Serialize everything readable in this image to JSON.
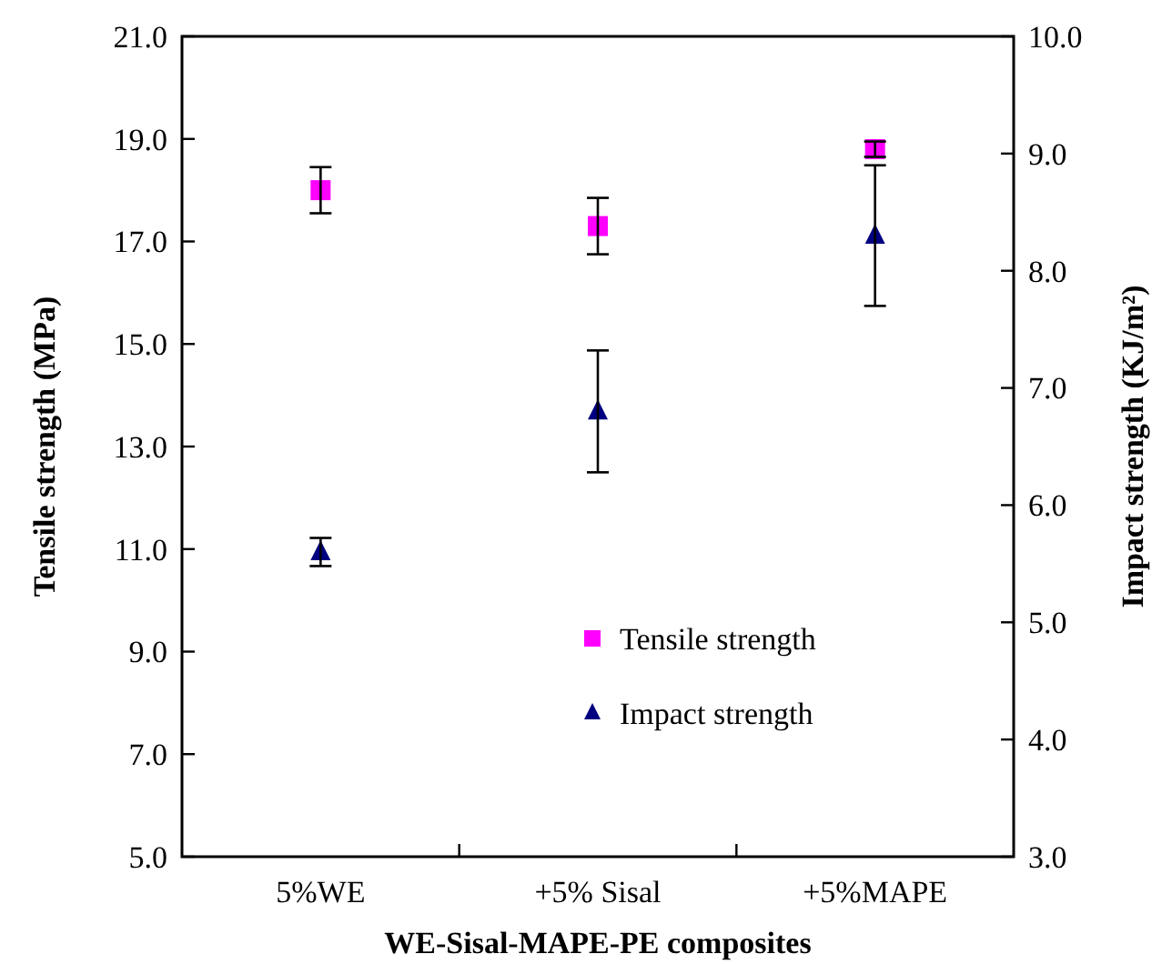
{
  "chart_data": {
    "type": "scatter",
    "xlabel": "WE-Sisal-MAPE-PE composites",
    "ylabel": "Tensile strength (MPa)",
    "y2label": "Impact strength (KJ/m²)",
    "categories": [
      "5%WE",
      "+5% Sisal",
      "+5%MAPE"
    ],
    "series": [
      {
        "name": "Tensile strength",
        "color": "#ff00ff",
        "marker": "square",
        "values": [
          18.0,
          17.3,
          18.8
        ],
        "errors": [
          0.45,
          0.55,
          0.15
        ]
      },
      {
        "name": "Impact strength",
        "color": "#000080",
        "marker": "triangle",
        "axis": "y2",
        "values": [
          5.6,
          6.8,
          8.3
        ],
        "errors": [
          0.12,
          0.52,
          0.6
        ]
      }
    ],
    "ylim": [
      5,
      21
    ],
    "yticks": [
      {
        "value": 5,
        "label": "5.0"
      },
      {
        "value": 7,
        "label": "7.0"
      },
      {
        "value": 9,
        "label": "9.0"
      },
      {
        "value": 11,
        "label": "11.0"
      },
      {
        "value": 13,
        "label": "13.0"
      },
      {
        "value": 15,
        "label": "15.0"
      },
      {
        "value": 17,
        "label": "17.0"
      },
      {
        "value": 19,
        "label": "19.0"
      },
      {
        "value": 21,
        "label": "21.0"
      }
    ],
    "y2lim": [
      3,
      10
    ],
    "y2ticks": [
      {
        "value": 3,
        "label": "3.0"
      },
      {
        "value": 4,
        "label": "4.0"
      },
      {
        "value": 5,
        "label": "5.0"
      },
      {
        "value": 6,
        "label": "6.0"
      },
      {
        "value": 7,
        "label": "7.0"
      },
      {
        "value": 8,
        "label": "8.0"
      },
      {
        "value": 9,
        "label": "9.0"
      },
      {
        "value": 10,
        "label": "10.0"
      }
    ],
    "legend": "bottom",
    "grid": false
  }
}
